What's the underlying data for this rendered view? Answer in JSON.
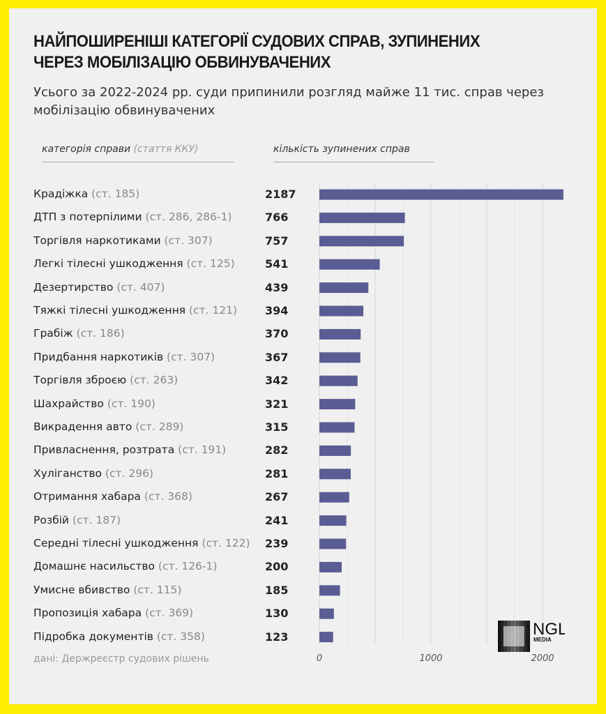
{
  "colors": {
    "border": "#ffee00",
    "background": "#f0f0f0",
    "bar": "#5a5c94",
    "grid": "#dcdcdc"
  },
  "title": "НАЙПОШИРЕНІШІ КАТЕГОРІЇ СУДОВИХ СПРАВ, ЗУПИНЕНИХ ЧЕРЕЗ МОБІЛІЗАЦІЮ ОБВИНУВАЧЕНИХ",
  "subtitle": "Усього за 2022-2024 рр. суди припинили розгляд майже 11 тис. справ через мобілізацію обвинувачених",
  "headers": {
    "category": "категорія справи",
    "category_note": "(стаття ККУ)",
    "count": "кількість зупинених справ"
  },
  "source": "дані: Держреєстр судових рішень",
  "logo": {
    "text": "NGL",
    "sub": "MEDIA"
  },
  "chart_data": {
    "type": "bar",
    "orientation": "horizontal",
    "title": "НАЙПОШИРЕНІШІ КАТЕГОРІЇ СУДОВИХ СПРАВ, ЗУПИНЕНИХ ЧЕРЕЗ МОБІЛІЗАЦІЮ ОБВИНУВАЧЕНИХ",
    "xlim": [
      0,
      2200
    ],
    "grid": true,
    "xticks": [
      "0",
      "1000",
      "2000"
    ],
    "categories": [
      {
        "name": "Крадіжка",
        "article": "(ст. 185)"
      },
      {
        "name": "ДТП з потерпілими",
        "article": "(ст. 286, 286-1)"
      },
      {
        "name": "Торгівля наркотиками",
        "article": "(ст. 307)"
      },
      {
        "name": "Легкі тілесні ушкодження",
        "article": "(ст. 125)"
      },
      {
        "name": "Дезертирство",
        "article": "(ст. 407)"
      },
      {
        "name": "Тяжкі тілесні ушкодження",
        "article": "(ст. 121)"
      },
      {
        "name": "Грабіж",
        "article": "(ст. 186)"
      },
      {
        "name": "Придбання наркотиків",
        "article": "(ст. 307)"
      },
      {
        "name": "Торгівля зброєю",
        "article": "(ст. 263)"
      },
      {
        "name": "Шахрайство",
        "article": "(ст. 190)"
      },
      {
        "name": "Викрадення авто",
        "article": "(ст. 289)"
      },
      {
        "name": "Привласнення, розтрата",
        "article": "(ст. 191)"
      },
      {
        "name": "Хуліганство",
        "article": "(ст. 296)"
      },
      {
        "name": "Отримання хабара",
        "article": "(ст. 368)"
      },
      {
        "name": "Розбій",
        "article": "(ст. 187)"
      },
      {
        "name": "Середні тілесні ушкодження",
        "article": "(ст. 122)"
      },
      {
        "name": "Домашнє насильство",
        "article": "(ст. 126-1)"
      },
      {
        "name": "Умисне вбивство",
        "article": "(ст. 115)"
      },
      {
        "name": "Пропозиція хабара",
        "article": "(ст. 369)"
      },
      {
        "name": "Підробка документів",
        "article": "(ст. 358)"
      }
    ],
    "values": [
      2187,
      766,
      757,
      541,
      439,
      394,
      370,
      367,
      342,
      321,
      315,
      282,
      281,
      267,
      241,
      239,
      200,
      185,
      130,
      123
    ]
  }
}
